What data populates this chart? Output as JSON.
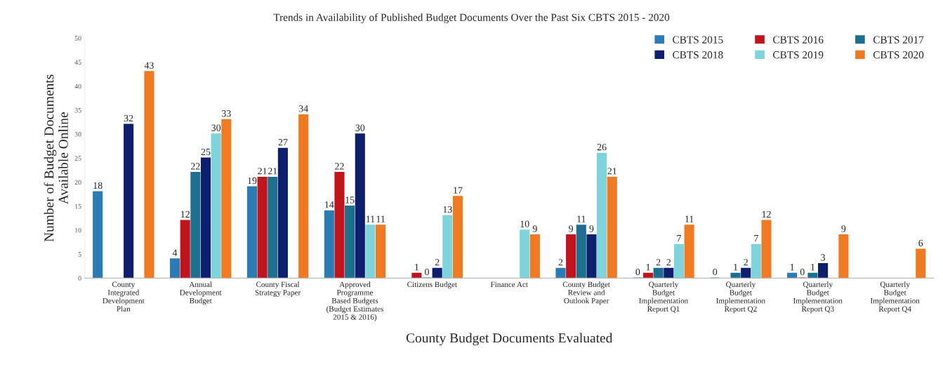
{
  "chart_data": {
    "type": "bar",
    "title": "Trends in Availability of Published Budget Documents Over the Past Six CBTS 2015 - 2020",
    "xlabel": "County Budget Documents Evaluated",
    "ylabel": "Number of Budget Documents\nAvailable Online",
    "categories": [
      "County\nIntegrated\nDevelopment\nPlan",
      "Annual\nDevelopment\nBudget",
      "County Fiscal\nStrategy Paper",
      "Approved\nProgramme\nBased Budgets\n(Budget Estimates\n2015 & 2016)",
      "Citizens Budget",
      "Finance Act",
      "County Budget\nReview and\nOutlook Paper",
      "Quarterly\nBudget\nImplementation\nReport Q1",
      "Quarterly\nBudget\nImplementation\nReport Q2",
      "Quarterly\nBudget\nImplementation\nReport Q3",
      "Quarterly\nBudget\nImplementation\nReport Q4"
    ],
    "series": [
      {
        "name": "CBTS 2015",
        "color": "#2b7bb5",
        "values": [
          18,
          4,
          19,
          14,
          null,
          null,
          2,
          0,
          0,
          1,
          null
        ]
      },
      {
        "name": "CBTS 2016",
        "color": "#c0141c",
        "values": [
          null,
          12,
          21,
          22,
          1,
          null,
          9,
          1,
          null,
          0,
          null
        ]
      },
      {
        "name": "CBTS 2017",
        "color": "#1d6f90",
        "values": [
          null,
          22,
          21,
          15,
          0,
          null,
          11,
          2,
          1,
          1,
          null
        ]
      },
      {
        "name": "CBTS 2018",
        "color": "#0e1f6e",
        "values": [
          32,
          25,
          27,
          30,
          2,
          null,
          9,
          2,
          2,
          3,
          null
        ]
      },
      {
        "name": "CBTS 2019",
        "color": "#7fd4dc",
        "values": [
          null,
          30,
          null,
          11,
          13,
          10,
          26,
          7,
          7,
          null,
          null
        ]
      },
      {
        "name": "CBTS 2020",
        "color": "#f07a22",
        "values": [
          43,
          33,
          34,
          11,
          17,
          9,
          21,
          11,
          12,
          9,
          6
        ]
      }
    ],
    "ylim": [
      0,
      50
    ],
    "yticks": [
      0,
      5,
      10,
      15,
      20,
      25,
      30,
      35,
      40,
      45,
      50
    ],
    "data_labels": true,
    "legend": "top right",
    "grid": false
  }
}
